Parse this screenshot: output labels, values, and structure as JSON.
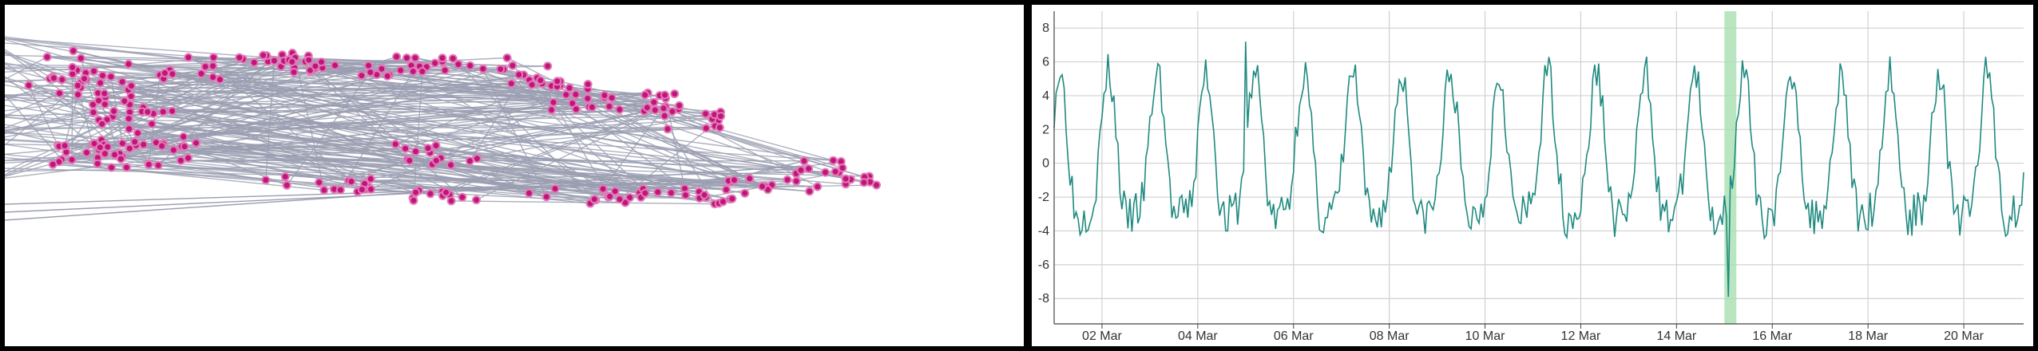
{
  "colors": {
    "background": "#000000",
    "panel": "#ffffff",
    "edge": "#9a9db0",
    "node_fill": "#c0157a",
    "node_stroke": "#e27ab6",
    "series": "#1f8a80",
    "highlight": "#a8e0b0",
    "grid": "#d0d0d0",
    "axis": "#444444"
  },
  "graph": {
    "icon": "network-graph"
  },
  "chart_data": {
    "type": "line",
    "title": "",
    "xlabel": "",
    "ylabel": "",
    "x_tick_labels": [
      "02 Mar",
      "04 Mar",
      "06 Mar",
      "08 Mar",
      "10 Mar",
      "12 Mar",
      "14 Mar",
      "16 Mar",
      "18 Mar",
      "20 Mar"
    ],
    "y_tick_labels": [
      "8",
      "6",
      "4",
      "2",
      "0",
      "-2",
      "-4",
      "-6",
      "-8"
    ],
    "x_range": [
      "2020-03-01T00:00",
      "2020-03-21T06:00"
    ],
    "ylim": [
      -9.5,
      9
    ],
    "grid": true,
    "highlight_band": {
      "start": "2020-03-15T00:00",
      "end": "2020-03-15T06:00"
    },
    "series": [
      {
        "name": "",
        "sampling": "hourly, 2020-03-01T00:00 to 2020-03-21T06:00",
        "values": []
      }
    ]
  }
}
